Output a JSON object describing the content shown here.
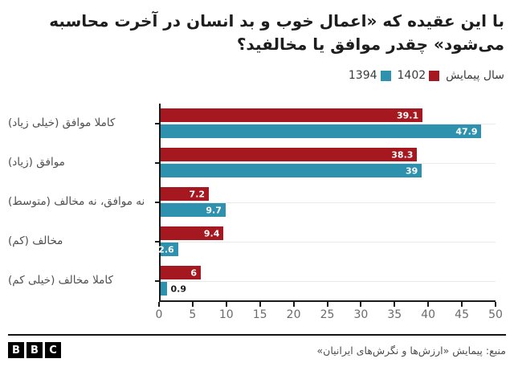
{
  "title": {
    "line1": "با این عقیده که «اعمال خوب و بد انسان در آخرت محاسبه",
    "line2": "می‌شود» چقدر موافق یا مخالفید؟"
  },
  "legend_label": "سال پیمایش",
  "chart_data": {
    "type": "bar",
    "orientation": "horizontal",
    "title": "با این عقیده که «اعمال خوب و بد انسان در آخرت محاسبه می‌شود» چقدر موافق یا مخالفید؟",
    "categories": [
      "کاملا موافق (خیلی زیاد)",
      "موافق (زیاد)",
      "نه موافق، نه مخالف (متوسط)",
      "مخالف (کم)",
      "کاملا مخالف (خیلی کم)"
    ],
    "series": [
      {
        "name": "1402",
        "color": "#a6181f",
        "values": [
          39.1,
          38.3,
          7.2,
          9.4,
          6
        ]
      },
      {
        "name": "1394",
        "color": "#2e92ae",
        "values": [
          47.9,
          39,
          9.7,
          2.6,
          0.9
        ]
      }
    ],
    "xlim": [
      0,
      50
    ],
    "x_ticks": [
      0,
      5,
      10,
      15,
      20,
      25,
      30,
      35,
      40,
      45,
      50
    ],
    "legend_position": "top-right",
    "grid": "horizontal gridline at each category center",
    "value_label_style": "inside bar end, white bold; outside dark when bar too small",
    "axis_color": "#1a1a1a",
    "gridline_color": "#e9e9e9"
  },
  "footer": {
    "logo_letters": [
      "B",
      "B",
      "C"
    ],
    "source": "منبع: پیمایش «ارزش‌ها و نگرش‌های ایرانیان»"
  }
}
